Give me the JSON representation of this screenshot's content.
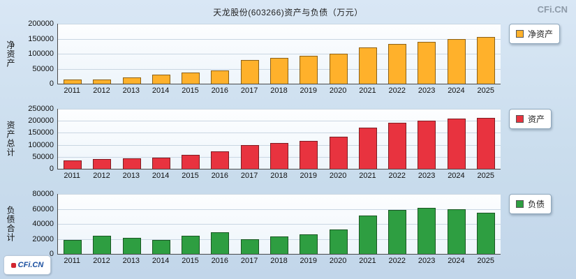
{
  "header": {
    "title": "天龙股份(603266)资产与负债（万元）",
    "watermark": "CFi.CN"
  },
  "footer": {
    "logo_text": "CFi.CN"
  },
  "chart_data": [
    {
      "type": "bar",
      "title": "净资产",
      "ylabel": "净资产",
      "legend": "净资产",
      "color": "#FFB12B",
      "categories": [
        "2011",
        "2012",
        "2013",
        "2014",
        "2015",
        "2016",
        "2017",
        "2018",
        "2019",
        "2020",
        "2021",
        "2022",
        "2023",
        "2024",
        "2025"
      ],
      "values": [
        13000,
        15000,
        22000,
        30000,
        37000,
        45000,
        80000,
        87000,
        92000,
        100000,
        120000,
        133000,
        140000,
        148000,
        155000
      ],
      "ylim": [
        0,
        200000
      ],
      "yticks": [
        0,
        50000,
        100000,
        150000,
        200000
      ],
      "grid": true,
      "legend_position": "right"
    },
    {
      "type": "bar",
      "title": "资产",
      "ylabel": "资产总计",
      "legend": "资产",
      "color": "#E8333F",
      "categories": [
        "2011",
        "2012",
        "2013",
        "2014",
        "2015",
        "2016",
        "2017",
        "2018",
        "2019",
        "2020",
        "2021",
        "2022",
        "2023",
        "2024",
        "2025"
      ],
      "values": [
        35000,
        40000,
        44000,
        48000,
        57000,
        73000,
        100000,
        108000,
        117000,
        135000,
        172000,
        193000,
        202000,
        210000,
        212000
      ],
      "ylim": [
        0,
        250000
      ],
      "yticks": [
        0,
        50000,
        100000,
        150000,
        200000,
        250000
      ],
      "grid": true,
      "legend_position": "right"
    },
    {
      "type": "bar",
      "title": "负债",
      "ylabel": "负债合计",
      "legend": "负债",
      "color": "#2E9E41",
      "categories": [
        "2011",
        "2012",
        "2013",
        "2014",
        "2015",
        "2016",
        "2017",
        "2018",
        "2019",
        "2020",
        "2021",
        "2022",
        "2023",
        "2024",
        "2025"
      ],
      "values": [
        19000,
        24000,
        21000,
        19000,
        24000,
        29000,
        20000,
        23000,
        26000,
        33000,
        51000,
        59000,
        61000,
        60000,
        55000
      ],
      "ylim": [
        0,
        80000
      ],
      "yticks": [
        0,
        20000,
        40000,
        60000,
        80000
      ],
      "grid": true,
      "legend_position": "right"
    }
  ]
}
